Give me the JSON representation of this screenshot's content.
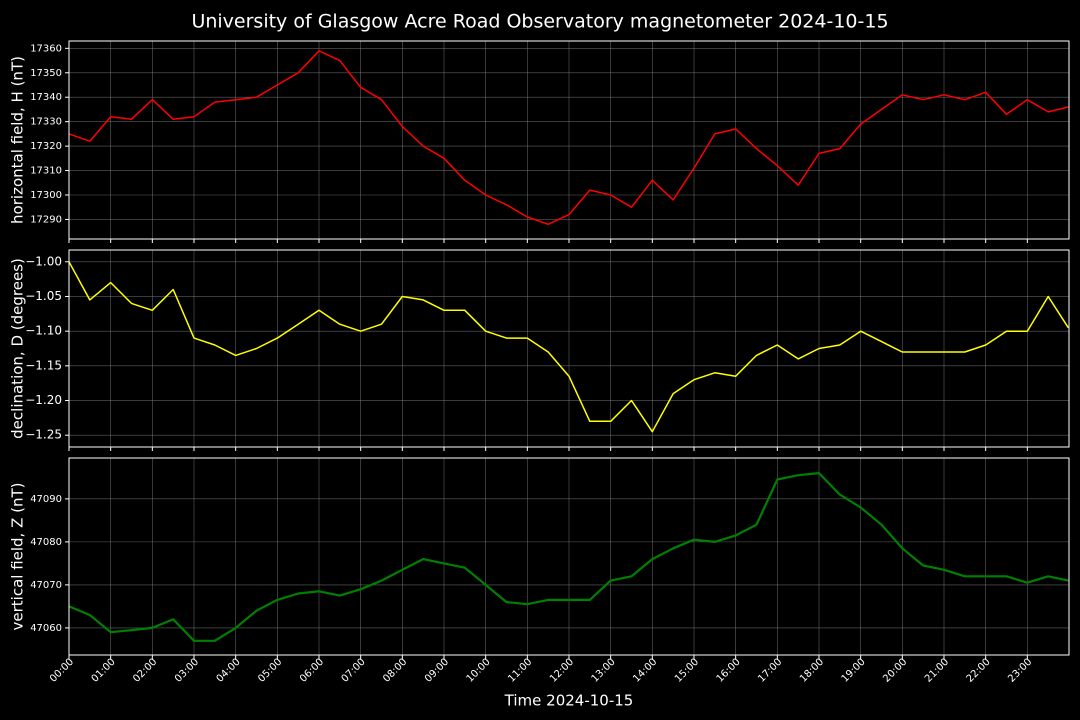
{
  "chart_data": [
    {
      "type": "line",
      "title": "University of Glasgow Acre Road Observatory magnetometer 2024-10-15",
      "ylabel": "horizontal field, H (nT)",
      "x": [
        "00:00",
        "00:30",
        "01:00",
        "01:30",
        "02:00",
        "02:30",
        "03:00",
        "03:30",
        "04:00",
        "04:30",
        "05:00",
        "05:30",
        "06:00",
        "06:30",
        "07:00",
        "07:30",
        "08:00",
        "08:30",
        "09:00",
        "09:30",
        "10:00",
        "10:30",
        "11:00",
        "11:30",
        "12:00",
        "12:30",
        "13:00",
        "13:30",
        "14:00",
        "14:30",
        "15:00",
        "15:30",
        "16:00",
        "16:30",
        "17:00",
        "17:30",
        "18:00",
        "18:30",
        "19:00",
        "19:30",
        "20:00",
        "20:30",
        "21:00",
        "21:30",
        "22:00",
        "22:30",
        "23:00",
        "23:30",
        "23:59"
      ],
      "series": [
        {
          "name": "H",
          "color": "#ff0000",
          "values": [
            17325,
            17322,
            17332,
            17331,
            17339,
            17331,
            17332,
            17338,
            17339,
            17340,
            17345,
            17350,
            17359,
            17355,
            17344,
            17339,
            17328,
            17320,
            17315,
            17306,
            17300,
            17296,
            17291,
            17288,
            17292,
            17302,
            17300,
            17295,
            17306,
            17298,
            17311,
            17325,
            17327,
            17319,
            17312,
            17304,
            17317,
            17319,
            17329,
            17335,
            17341,
            17339,
            17341,
            17339,
            17342,
            17333,
            17339,
            17334,
            17336
          ]
        }
      ],
      "xlim": [
        "00:00",
        "24:00"
      ],
      "xticks": [
        "00:00",
        "01:00",
        "02:00",
        "03:00",
        "04:00",
        "05:00",
        "06:00",
        "07:00",
        "08:00",
        "09:00",
        "10:00",
        "11:00",
        "12:00",
        "13:00",
        "14:00",
        "15:00",
        "16:00",
        "17:00",
        "18:00",
        "19:00",
        "20:00",
        "21:00",
        "22:00",
        "23:00"
      ],
      "ylim": [
        17282,
        17363
      ],
      "yticks": [
        17290,
        17300,
        17310,
        17320,
        17330,
        17340,
        17350,
        17360
      ],
      "grid": true
    },
    {
      "type": "line",
      "ylabel": "declination, D (degrees)",
      "x": [
        "00:00",
        "00:30",
        "01:00",
        "01:30",
        "02:00",
        "02:30",
        "03:00",
        "03:30",
        "04:00",
        "04:30",
        "05:00",
        "05:30",
        "06:00",
        "06:30",
        "07:00",
        "07:30",
        "08:00",
        "08:30",
        "09:00",
        "09:30",
        "10:00",
        "10:30",
        "11:00",
        "11:30",
        "12:00",
        "12:30",
        "13:00",
        "13:30",
        "14:00",
        "14:30",
        "15:00",
        "15:30",
        "16:00",
        "16:30",
        "17:00",
        "17:30",
        "18:00",
        "18:30",
        "19:00",
        "19:30",
        "20:00",
        "20:30",
        "21:00",
        "21:30",
        "22:00",
        "22:30",
        "23:00",
        "23:30",
        "23:59"
      ],
      "series": [
        {
          "name": "D",
          "color": "#ffff00",
          "values": [
            -1.0,
            -1.055,
            -1.03,
            -1.06,
            -1.07,
            -1.04,
            -1.11,
            -1.12,
            -1.135,
            -1.125,
            -1.11,
            -1.09,
            -1.07,
            -1.09,
            -1.1,
            -1.09,
            -1.05,
            -1.055,
            -1.07,
            -1.07,
            -1.1,
            -1.11,
            -1.11,
            -1.13,
            -1.165,
            -1.23,
            -1.23,
            -1.2,
            -1.245,
            -1.19,
            -1.17,
            -1.16,
            -1.165,
            -1.135,
            -1.12,
            -1.14,
            -1.125,
            -1.12,
            -1.1,
            -1.115,
            -1.13,
            -1.13,
            -1.13,
            -1.13,
            -1.12,
            -1.1,
            -1.1,
            -1.05,
            -1.095
          ]
        }
      ],
      "xlim": [
        "00:00",
        "24:00"
      ],
      "xticks": [
        "00:00",
        "01:00",
        "02:00",
        "03:00",
        "04:00",
        "05:00",
        "06:00",
        "07:00",
        "08:00",
        "09:00",
        "10:00",
        "11:00",
        "12:00",
        "13:00",
        "14:00",
        "15:00",
        "16:00",
        "17:00",
        "18:00",
        "19:00",
        "20:00",
        "21:00",
        "22:00",
        "23:00"
      ],
      "ylim": [
        -1.267,
        -0.983
      ],
      "yticks": [
        {
          "value": -1.25,
          "label": "−1.25"
        },
        {
          "value": -1.2,
          "label": "−1.20"
        },
        {
          "value": -1.15,
          "label": "−1.15"
        },
        {
          "value": -1.1,
          "label": "−1.10"
        },
        {
          "value": -1.05,
          "label": "−1.05"
        },
        {
          "value": -1.0,
          "label": "−1.00"
        }
      ],
      "grid": true
    },
    {
      "type": "line",
      "ylabel": "vertical field, Z (nT)",
      "xlabel": "Time 2024-10-15",
      "x": [
        "00:00",
        "00:30",
        "01:00",
        "01:30",
        "02:00",
        "02:30",
        "03:00",
        "03:30",
        "04:00",
        "04:30",
        "05:00",
        "05:30",
        "06:00",
        "06:30",
        "07:00",
        "07:30",
        "08:00",
        "08:30",
        "09:00",
        "09:30",
        "10:00",
        "10:30",
        "11:00",
        "11:30",
        "12:00",
        "12:30",
        "13:00",
        "13:30",
        "14:00",
        "14:30",
        "15:00",
        "15:30",
        "16:00",
        "16:30",
        "17:00",
        "17:30",
        "18:00",
        "18:30",
        "19:00",
        "19:30",
        "20:00",
        "20:30",
        "21:00",
        "21:30",
        "22:00",
        "22:30",
        "23:00",
        "23:30",
        "23:59"
      ],
      "series": [
        {
          "name": "Z",
          "color": "#008000",
          "values": [
            47065,
            47063,
            47059,
            47059.5,
            47060,
            47062,
            47057,
            47057,
            47060,
            47064,
            47066.5,
            47068,
            47068.5,
            47067.5,
            47069,
            47071,
            47073.5,
            47076,
            47075,
            47074,
            47070,
            47066,
            47065.5,
            47066.5,
            47066.5,
            47066.5,
            47071,
            47072,
            47076,
            47078.5,
            47080.5,
            47080,
            47081.5,
            47084,
            47094.5,
            47095.5,
            47096,
            47091,
            47088,
            47084,
            47078.5,
            47074.5,
            47073.5,
            47072,
            47072,
            47072,
            47070.5,
            47072,
            47071
          ]
        }
      ],
      "xlim": [
        "00:00",
        "24:00"
      ],
      "xticks": [
        "00:00",
        "01:00",
        "02:00",
        "03:00",
        "04:00",
        "05:00",
        "06:00",
        "07:00",
        "08:00",
        "09:00",
        "10:00",
        "11:00",
        "12:00",
        "13:00",
        "14:00",
        "15:00",
        "16:00",
        "17:00",
        "18:00",
        "19:00",
        "20:00",
        "21:00",
        "22:00",
        "23:00"
      ],
      "ylim": [
        47053.7,
        47099.5
      ],
      "yticks": [
        47060,
        47070,
        47080,
        47090
      ],
      "grid": true
    }
  ]
}
